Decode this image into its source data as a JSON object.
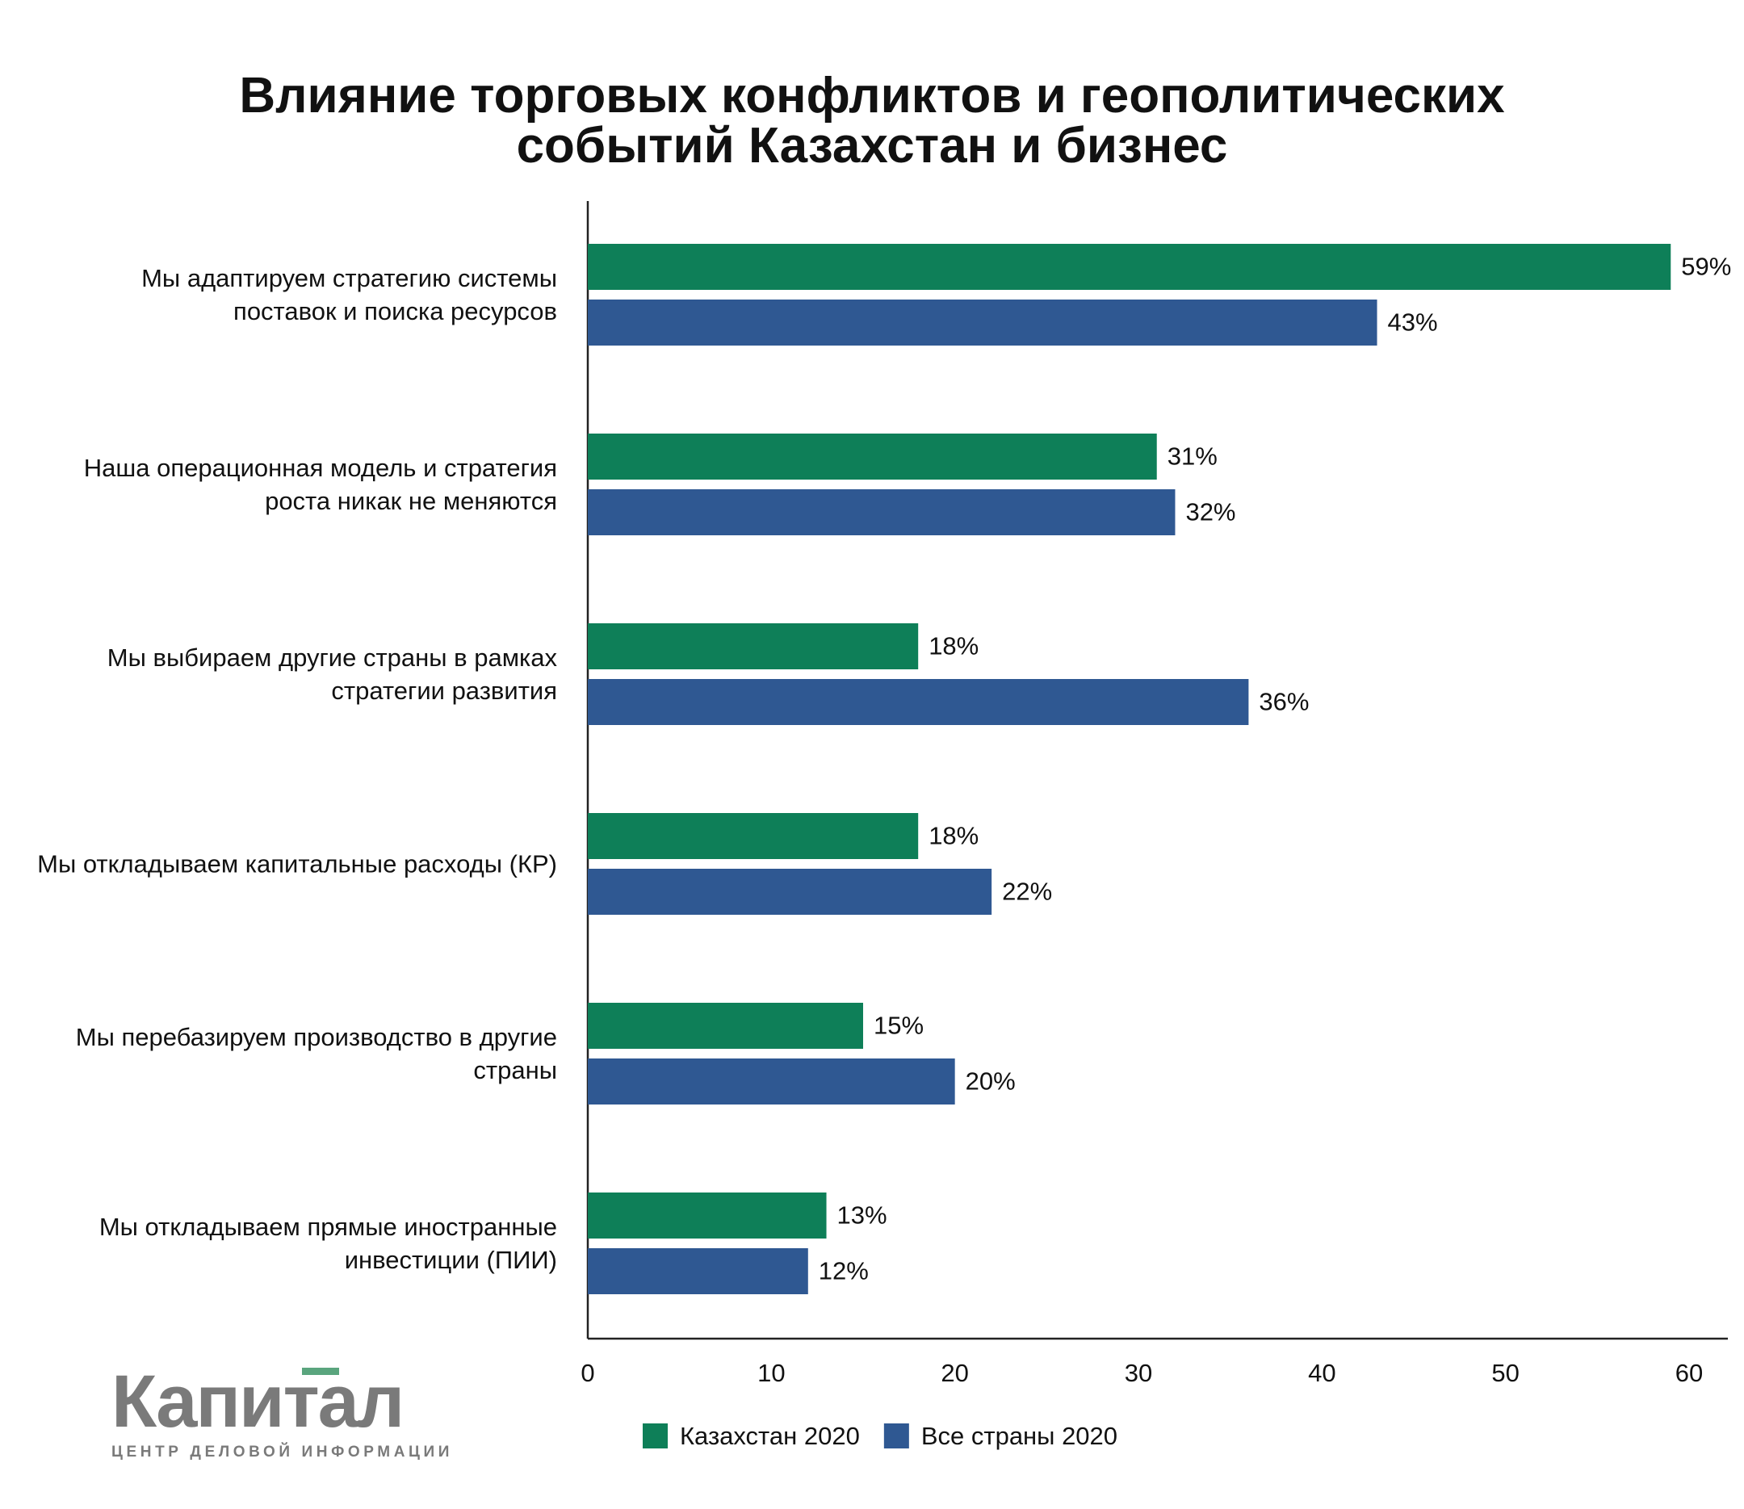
{
  "chart_data": {
    "type": "bar",
    "orientation": "horizontal",
    "title": "Влияние торговых конфликтов и геополитических событий Казахстан и бизнес",
    "categories": [
      "Мы адаптируем стратегию системы поставок и поиска ресурсов",
      "Наша операционная модель и стратегия роста никак не меняются",
      "Мы выбираем другие страны в рамках стратегии развития",
      "Мы откладываем капитальные расходы (КР)",
      "Мы перебазируем производство в другие страны",
      "Мы откладываем прямые иностранные инвестиции (ПИИ)"
    ],
    "series": [
      {
        "name": "Казахстан 2020",
        "color": "#0e7f58",
        "values": [
          59,
          31,
          18,
          18,
          15,
          13
        ],
        "value_labels": [
          "59%",
          "31%",
          "18%",
          "18%",
          "15%",
          "13%"
        ]
      },
      {
        "name": "Все страны 2020",
        "color": "#2f5892",
        "values": [
          43,
          32,
          36,
          22,
          20,
          12
        ],
        "value_labels": [
          "43%",
          "32%",
          "36%",
          "22%",
          "20%",
          "12%"
        ]
      }
    ],
    "xlim": [
      0,
      60
    ],
    "xticks": [
      0,
      10,
      20,
      30,
      40,
      50,
      60
    ],
    "grid": false,
    "legend": "bottom"
  },
  "logo": {
    "name": "Капитал",
    "tagline": "ЦЕНТР ДЕЛОВОЙ ИНФОРМАЦИИ"
  }
}
